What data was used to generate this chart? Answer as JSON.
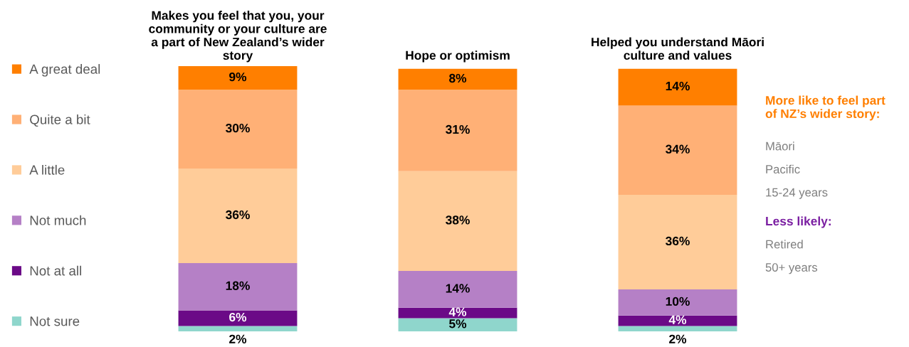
{
  "chart_data": {
    "type": "bar",
    "stacked": true,
    "legend": "left",
    "grid": false,
    "categories": [
      "Makes you feel that you, your community or your culture are a part of New Zealand’s wider story",
      "Hope or optimism",
      "Helped you understand Māori culture and values"
    ],
    "series": [
      {
        "name": "Not sure",
        "color": "#8fd6cc",
        "values": [
          2,
          5,
          2
        ],
        "value_labels": [
          "2%",
          "5%",
          "2%"
        ]
      },
      {
        "name": "Not at all",
        "color": "#6b0a87",
        "values": [
          6,
          4,
          4
        ],
        "value_labels": [
          "6%",
          "4%",
          "4%"
        ]
      },
      {
        "name": "Not much",
        "color": "#b580c6",
        "values": [
          18,
          14,
          10
        ],
        "value_labels": [
          "18%",
          "14%",
          "10%"
        ]
      },
      {
        "name": "A little",
        "color": "#ffcc99",
        "values": [
          36,
          38,
          36
        ],
        "value_labels": [
          "36%",
          "38%",
          "36%"
        ]
      },
      {
        "name": "Quite a bit",
        "color": "#ffb076",
        "values": [
          30,
          31,
          34
        ],
        "value_labels": [
          "30%",
          "31%",
          "34%"
        ]
      },
      {
        "name": "A great deal",
        "color": "#ff7f00",
        "values": [
          9,
          8,
          14
        ],
        "value_labels": [
          "9%",
          "8%",
          "14%"
        ]
      }
    ],
    "annotations": [
      "More like to feel part of NZ’s wider story:",
      "Māori",
      "Pacific",
      "15-24 years",
      "Less likely:",
      "Retired",
      "50+ years"
    ]
  }
}
